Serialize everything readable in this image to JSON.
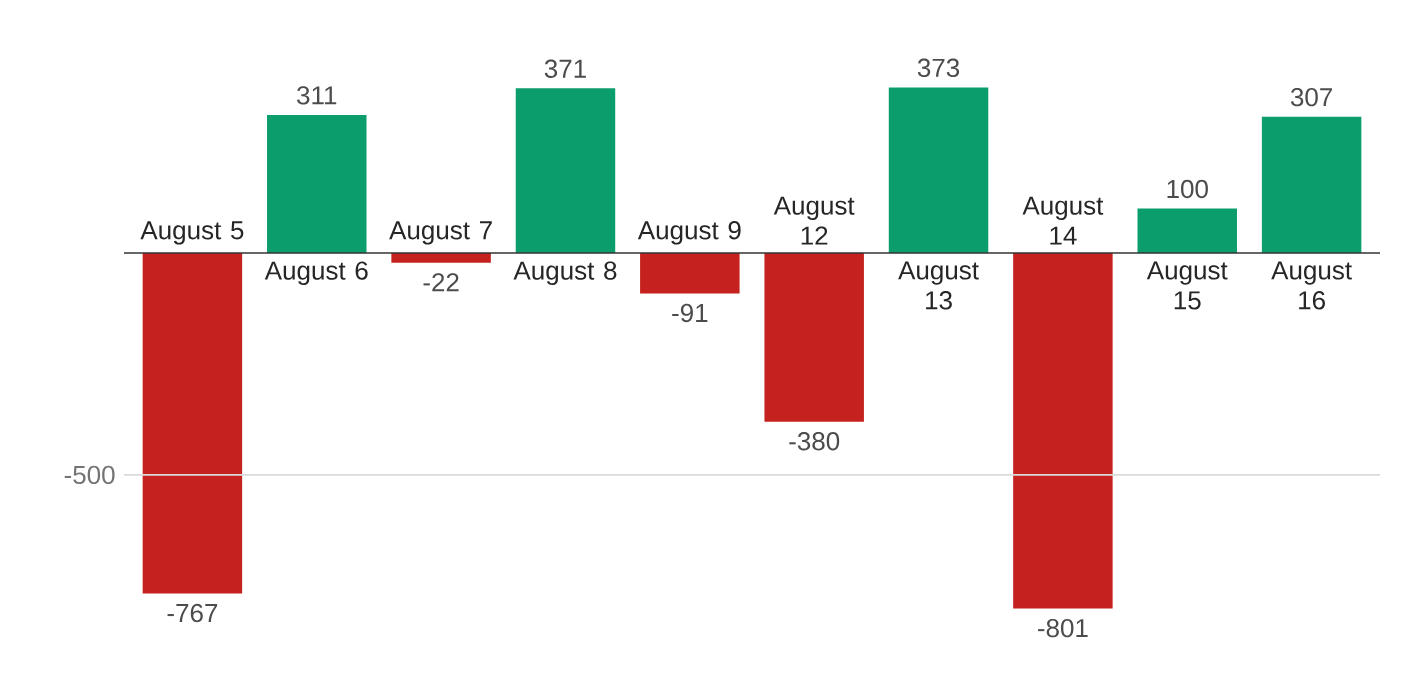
{
  "chart_data": {
    "type": "bar",
    "categories": [
      "August 5",
      "August 6",
      "August 7",
      "August 8",
      "August 9",
      "August 12",
      "August 13",
      "August 14",
      "August 15",
      "August 16"
    ],
    "values": [
      -767,
      311,
      -22,
      371,
      -91,
      -380,
      373,
      -801,
      100,
      307
    ],
    "colors": [
      "#c5221f",
      "#0b9d6b",
      "#c5221f",
      "#0b9d6b",
      "#c5221f",
      "#c5221f",
      "#0b9d6b",
      "#c5221f",
      "#0b9d6b",
      "#0b9d6b"
    ],
    "ref_lines": [
      {
        "axis": "y",
        "value": -500,
        "label": "-500",
        "color": "#dadada"
      }
    ],
    "data_labels": true
  }
}
